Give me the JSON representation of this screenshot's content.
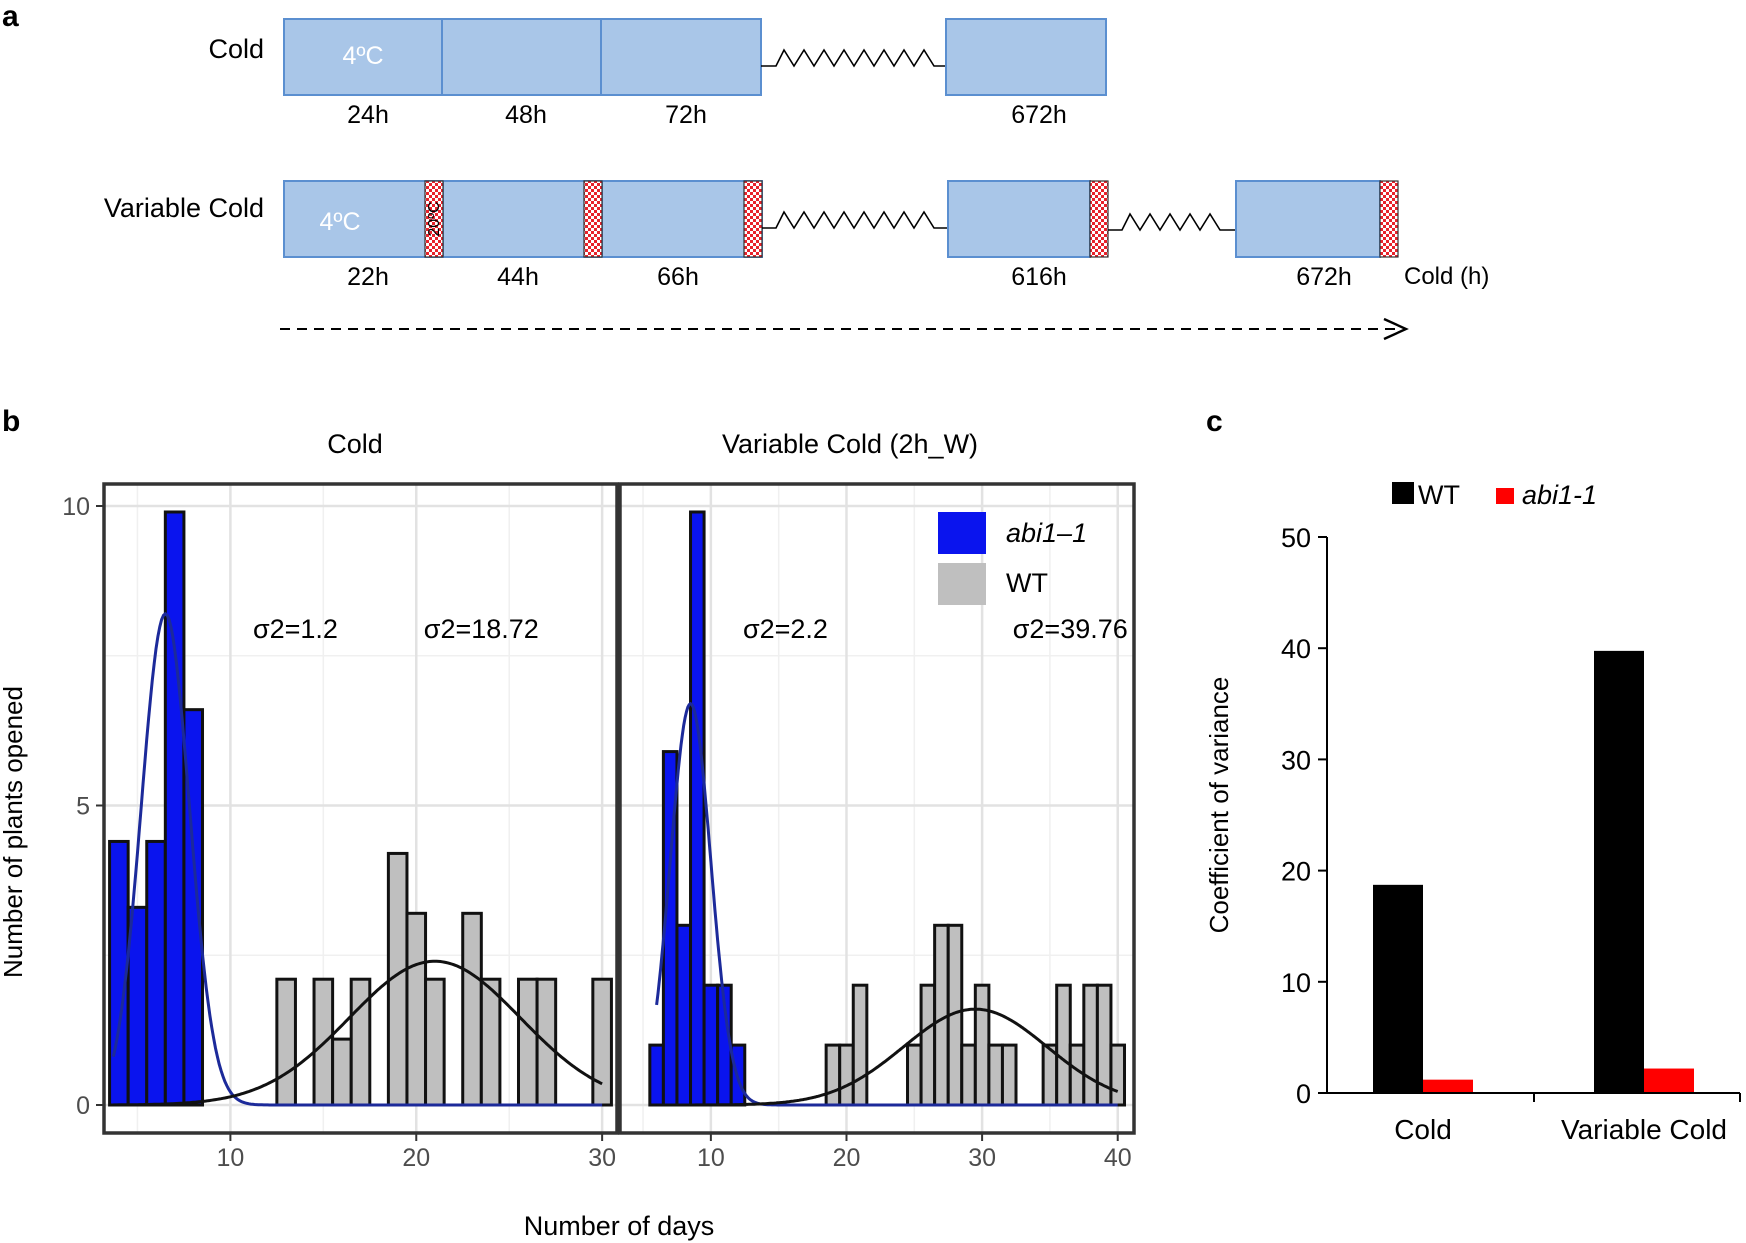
{
  "colors": {
    "block_fill": "#a9c6e8",
    "block_stroke": "#5b8fd0",
    "warm_check": "#e8222b",
    "abi1": "#0a14ee",
    "wt_bar": "#bfbfbf",
    "wt_fit": "#111111",
    "abi1_fit": "#1c2a9a",
    "panel_c_wt": "#000000",
    "panel_c_abi1": "#ff0000"
  },
  "panel_a": {
    "label": "a",
    "rows": [
      {
        "name": "Cold",
        "temp_label": "4ºC",
        "warm_label": "",
        "times": [
          "24h",
          "48h",
          "72h",
          "672h"
        ],
        "extra_label": ""
      },
      {
        "name": "Variable Cold",
        "temp_label": "4ºC",
        "warm_label": "20ºC",
        "times": [
          "22h",
          "44h",
          "66h",
          "616h",
          "672h"
        ],
        "extra_label": "Cold (h)"
      }
    ]
  },
  "chart_data": [
    {
      "id": "b",
      "panel_label": "b",
      "type": "bar",
      "subtype": "histogram_facets",
      "ylabel": "Number of plants opened",
      "xlabel": "Number of days",
      "ylim": [
        0,
        10
      ],
      "yticks": [
        0,
        5,
        10
      ],
      "grid": true,
      "legend": {
        "position": "top-right",
        "entries": [
          {
            "name": "abi1–1",
            "color": "#0a14ee"
          },
          {
            "name": "WT",
            "color": "#bfbfbf"
          }
        ]
      },
      "facets": [
        {
          "title": "Cold",
          "xlim": [
            3.2,
            30.8
          ],
          "xticks": [
            10,
            20,
            30
          ],
          "binwidth": 1,
          "series": [
            {
              "name": "abi1–1",
              "bins": [
                {
                  "x": 4,
                  "y": 4.4
                },
                {
                  "x": 5,
                  "y": 3.3
                },
                {
                  "x": 6,
                  "y": 4.4
                },
                {
                  "x": 7,
                  "y": 9.9
                },
                {
                  "x": 8,
                  "y": 6.6
                }
              ]
            },
            {
              "name": "WT",
              "bins": [
                {
                  "x": 13,
                  "y": 2.1
                },
                {
                  "x": 15,
                  "y": 2.1
                },
                {
                  "x": 16,
                  "y": 1.1
                },
                {
                  "x": 17,
                  "y": 2.1
                },
                {
                  "x": 19,
                  "y": 4.2
                },
                {
                  "x": 20,
                  "y": 3.2
                },
                {
                  "x": 21,
                  "y": 2.1
                },
                {
                  "x": 23,
                  "y": 3.2
                },
                {
                  "x": 24,
                  "y": 2.1
                },
                {
                  "x": 26,
                  "y": 2.1
                },
                {
                  "x": 27,
                  "y": 2.1
                },
                {
                  "x": 30,
                  "y": 2.1
                }
              ]
            }
          ],
          "fits": [
            {
              "name": "abi1–1",
              "mean": 6.5,
              "sd": 1.3,
              "peak": 8.2,
              "range": [
                3.7,
                30
              ]
            },
            {
              "name": "WT",
              "mean": 21,
              "sd": 4.6,
              "peak": 2.4,
              "range": [
                3.7,
                30
              ]
            }
          ],
          "annotations": [
            {
              "text": "σ2=1.2",
              "x": 13.5,
              "y": 7.8
            },
            {
              "text": "σ2=18.72",
              "x": 23.5,
              "y": 7.8
            }
          ]
        },
        {
          "title": "Variable Cold (2h_W)",
          "xlim": [
            3.3,
            41.2
          ],
          "xticks": [
            10,
            20,
            30,
            40
          ],
          "binwidth": 1,
          "series": [
            {
              "name": "abi1–1",
              "bins": [
                {
                  "x": 6,
                  "y": 1.0
                },
                {
                  "x": 7,
                  "y": 5.9
                },
                {
                  "x": 8,
                  "y": 3.0
                },
                {
                  "x": 9,
                  "y": 9.9
                },
                {
                  "x": 10,
                  "y": 2.0
                },
                {
                  "x": 11,
                  "y": 2.0
                },
                {
                  "x": 12,
                  "y": 1.0
                }
              ]
            },
            {
              "name": "WT",
              "bins": [
                {
                  "x": 19,
                  "y": 1.0
                },
                {
                  "x": 20,
                  "y": 1.0
                },
                {
                  "x": 21,
                  "y": 2.0
                },
                {
                  "x": 25,
                  "y": 1.0
                },
                {
                  "x": 26,
                  "y": 2.0
                },
                {
                  "x": 27,
                  "y": 3.0
                },
                {
                  "x": 28,
                  "y": 3.0
                },
                {
                  "x": 29,
                  "y": 1.0
                },
                {
                  "x": 30,
                  "y": 2.0
                },
                {
                  "x": 31,
                  "y": 1.0
                },
                {
                  "x": 32,
                  "y": 1.0
                },
                {
                  "x": 35,
                  "y": 1.0
                },
                {
                  "x": 36,
                  "y": 2.0
                },
                {
                  "x": 37,
                  "y": 1.0
                },
                {
                  "x": 38,
                  "y": 2.0
                },
                {
                  "x": 39,
                  "y": 2.0
                },
                {
                  "x": 40,
                  "y": 1.0
                }
              ]
            }
          ],
          "fits": [
            {
              "name": "abi1–1",
              "mean": 8.5,
              "sd": 1.5,
              "peak": 6.7,
              "range": [
                6,
                40
              ]
            },
            {
              "name": "WT",
              "mean": 29.5,
              "sd": 5.3,
              "peak": 1.6,
              "range": [
                6,
                40
              ]
            }
          ],
          "annotations": [
            {
              "text": "σ2=2.2",
              "x": 15.5,
              "y": 7.8
            },
            {
              "text": "σ2=39.76",
              "x": 36.5,
              "y": 7.8
            }
          ]
        }
      ]
    },
    {
      "id": "c",
      "panel_label": "c",
      "type": "bar",
      "title": "",
      "ylabel": "Coefficient of variance",
      "xlabel": "",
      "categories": [
        "Cold",
        "Variable Cold"
      ],
      "series": [
        {
          "name": "WT",
          "color": "#000000",
          "values": [
            18.72,
            39.76
          ]
        },
        {
          "name": "abi1-1",
          "color": "#ff0000",
          "values": [
            1.2,
            2.2
          ]
        }
      ],
      "ylim": [
        0,
        50
      ],
      "yticks": [
        0,
        10,
        20,
        30,
        40,
        50
      ],
      "grid": false,
      "legend": {
        "position": "top"
      }
    }
  ]
}
